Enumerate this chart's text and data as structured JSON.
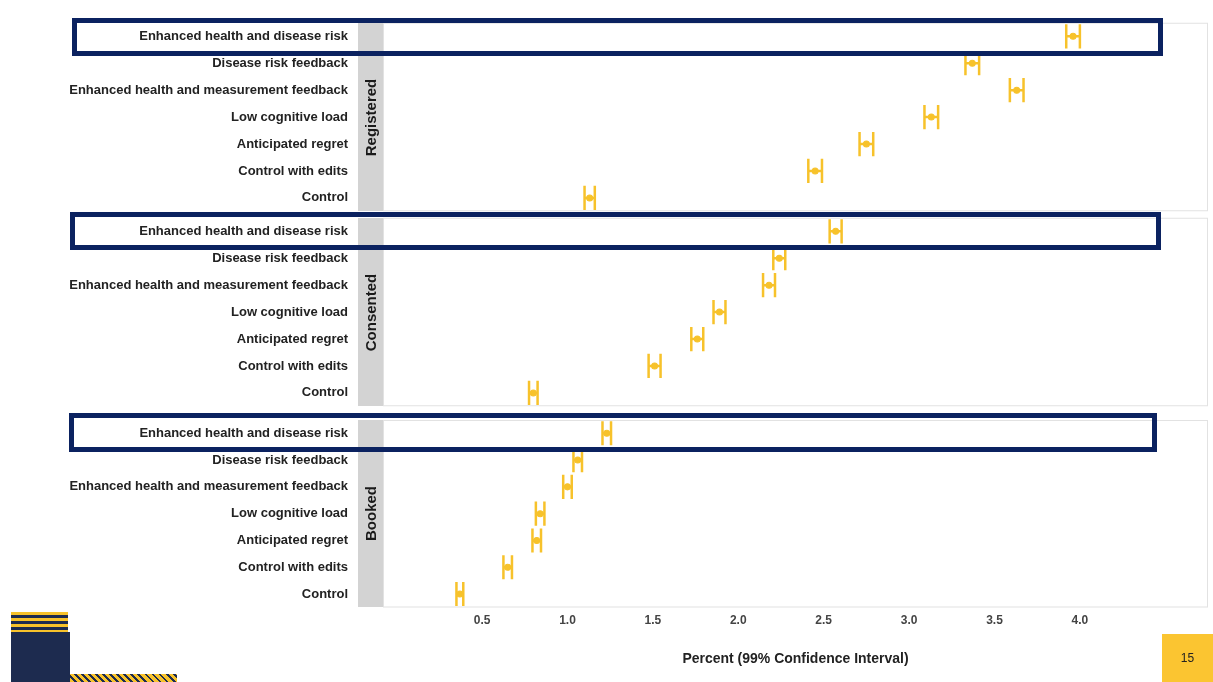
{
  "chart_data": [
    {
      "type": "scatter",
      "orientation": "horizontal",
      "title": "Registered",
      "categories": [
        "Enhanced health and disease risk",
        "Disease risk feedback",
        "Enhanced health and measurement feedback",
        "Low cognitive load",
        "Anticipated regret",
        "Control with edits",
        "Control"
      ],
      "values": [
        3.96,
        3.37,
        3.63,
        3.13,
        2.75,
        2.45,
        1.13
      ],
      "errors": [
        0.04,
        0.04,
        0.04,
        0.04,
        0.04,
        0.04,
        0.03
      ],
      "color": "#f7c22b",
      "marker": "circle",
      "xlim": [
        -0.08,
        4.75
      ],
      "tick_labels": "y"
    },
    {
      "type": "scatter",
      "orientation": "horizontal",
      "title": "Consented",
      "categories": [
        "Enhanced health and disease risk",
        "Disease risk feedback",
        "Enhanced health and measurement feedback",
        "Low cognitive load",
        "Anticipated regret",
        "Control with edits",
        "Control"
      ],
      "values": [
        2.57,
        2.24,
        2.18,
        1.89,
        1.76,
        1.51,
        0.8
      ],
      "errors": [
        0.035,
        0.035,
        0.035,
        0.035,
        0.035,
        0.035,
        0.025
      ],
      "color": "#f7c22b",
      "marker": "circle",
      "xlim": [
        -0.08,
        4.75
      ],
      "tick_labels": "y"
    },
    {
      "type": "scatter",
      "orientation": "horizontal",
      "title": "Booked",
      "xlabel": "Percent (99% Confidence Interval)",
      "categories": [
        "Enhanced health and disease risk",
        "Disease risk feedback",
        "Enhanced health and measurement feedback",
        "Low cognitive load",
        "Anticipated regret",
        "Control with edits",
        "Control"
      ],
      "values": [
        1.23,
        1.06,
        1.0,
        0.84,
        0.82,
        0.65,
        0.37
      ],
      "errors": [
        0.025,
        0.025,
        0.025,
        0.025,
        0.025,
        0.025,
        0.02
      ],
      "color": "#f7c22b",
      "marker": "circle",
      "xlim": [
        -0.08,
        4.75
      ],
      "xticks": [
        {
          "value": 0.5,
          "label": "0.5"
        },
        {
          "value": 1.0,
          "label": "1.0"
        },
        {
          "value": 1.5,
          "label": "1.5"
        },
        {
          "value": 2.0,
          "label": "2.0"
        },
        {
          "value": 2.5,
          "label": "2.5"
        },
        {
          "value": 3.0,
          "label": "3.0"
        },
        {
          "value": 3.5,
          "label": "3.5"
        },
        {
          "value": 4.0,
          "label": "4.0"
        }
      ],
      "annotations": [
        "15"
      ]
    }
  ]
}
